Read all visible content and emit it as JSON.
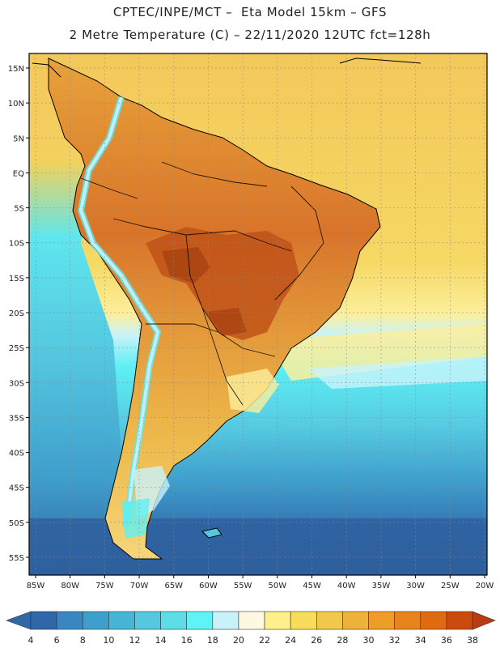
{
  "header": {
    "line1": "CPTEC/INPE/MCT –  Eta Model 15km – GFS",
    "line2": "2 Metre Temperature (C) – 22/11/2020 12UTC fct=128h"
  },
  "map": {
    "lat_ticks": [
      "15N",
      "10N",
      "5N",
      "EQ",
      "5S",
      "10S",
      "15S",
      "20S",
      "25S",
      "30S",
      "35S",
      "40S",
      "45S",
      "50S",
      "55S"
    ],
    "lon_ticks": [
      "85W",
      "80W",
      "75W",
      "70W",
      "65W",
      "60W",
      "55W",
      "50W",
      "45W",
      "40W",
      "35W",
      "30W",
      "25W",
      "20W"
    ]
  },
  "colorbar": {
    "labels": [
      "4",
      "6",
      "8",
      "10",
      "12",
      "14",
      "16",
      "18",
      "20",
      "22",
      "24",
      "26",
      "28",
      "30",
      "32",
      "34",
      "36",
      "38"
    ],
    "colors": [
      "#2f67a8",
      "#2f67a8",
      "#3a86c0",
      "#3f9fcc",
      "#48b4d8",
      "#55c8e0",
      "#5cdde8",
      "#5ef4f6",
      "#c8f2fa",
      "#fff8e0",
      "#fff08c",
      "#f8dc5c",
      "#f2c84a",
      "#eeb23a",
      "#ee9e28",
      "#e8841c",
      "#e06a10",
      "#cc4a0c",
      "#b83c10"
    ]
  }
}
